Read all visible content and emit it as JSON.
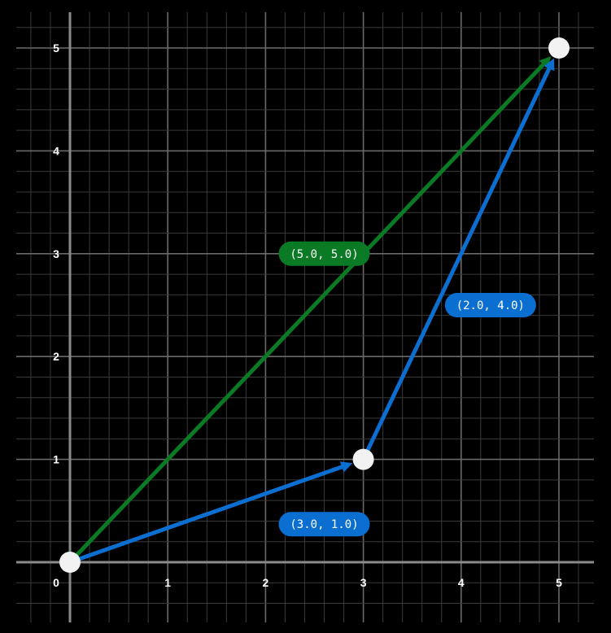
{
  "axes": {
    "x_ticks": [
      "0",
      "1",
      "2",
      "3",
      "4",
      "5"
    ],
    "y_ticks": [
      "1",
      "2",
      "3",
      "4",
      "5"
    ]
  },
  "colors": {
    "background": "#000000",
    "grid_minor": "#3a3a3a",
    "grid_major": "#6a6a6a",
    "axis": "#8a8a8a",
    "green": "#0b7a24",
    "blue": "#0a6fd1",
    "point": "#f2f2f2"
  },
  "points": [
    {
      "x": 0,
      "y": 0
    },
    {
      "x": 3,
      "y": 1
    },
    {
      "x": 5,
      "y": 5
    }
  ],
  "vectors": [
    {
      "from": [
        0,
        0
      ],
      "to": [
        5,
        5
      ],
      "color": "green",
      "label": "(5.0, 5.0)",
      "label_at": [
        2.6,
        3.0
      ]
    },
    {
      "from": [
        0,
        0
      ],
      "to": [
        3,
        1
      ],
      "color": "blue",
      "label": "(3.0, 1.0)",
      "label_at": [
        2.6,
        0.37
      ]
    },
    {
      "from": [
        3,
        1
      ],
      "to": [
        5,
        5
      ],
      "color": "blue",
      "label": "(2.0, 4.0)",
      "label_at": [
        4.3,
        2.5
      ]
    }
  ]
}
